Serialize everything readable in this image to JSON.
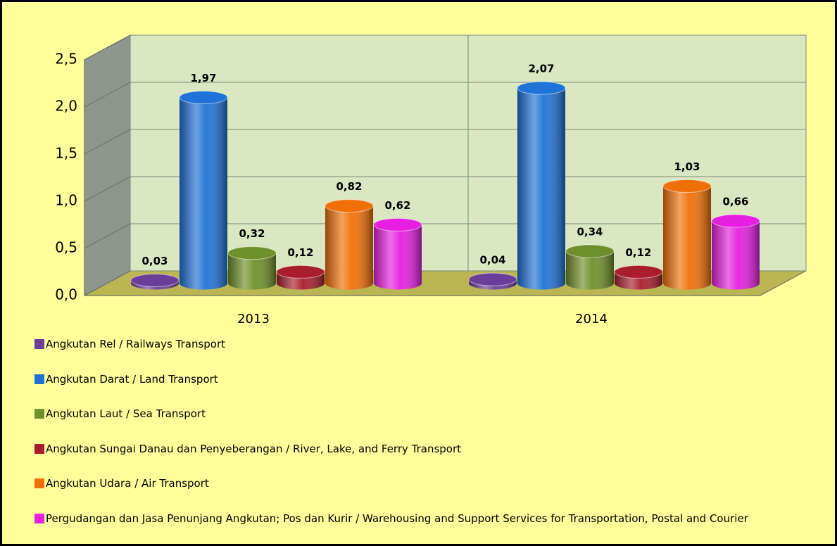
{
  "chart_data": {
    "type": "bar3d",
    "categories": [
      "2013",
      "2014"
    ],
    "series": [
      {
        "name": "Angkutan Rel / Railways Transport",
        "color": "#6a3f9a",
        "values": [
          0.03,
          0.04
        ],
        "value_labels": [
          "0,03",
          "0,04"
        ]
      },
      {
        "name": "Angkutan Darat / Land Transport",
        "color": "#1f72d6",
        "values": [
          1.97,
          2.07
        ],
        "value_labels": [
          "1,97",
          "2,07"
        ]
      },
      {
        "name": "Angkutan Laut / Sea Transport",
        "color": "#6e8f2a",
        "values": [
          0.32,
          0.34
        ],
        "value_labels": [
          "0,32",
          "0,34"
        ]
      },
      {
        "name": "Angkutan Sungai Danau dan Penyeberangan / River, Lake, and Ferry  Transport",
        "color": "#a81e2c",
        "values": [
          0.12,
          0.12
        ],
        "value_labels": [
          "0,12",
          "0,12"
        ]
      },
      {
        "name": "Angkutan Udara / Air Transport",
        "color": "#f07008",
        "values": [
          0.82,
          1.03
        ],
        "value_labels": [
          "0,82",
          "1,03"
        ]
      },
      {
        "name": "Pergudangan dan Jasa Penunjang Angkutan; Pos dan Kurir / Warehousing and Support Services for Transportation, Postal and Courier",
        "color": "#e520e0",
        "values": [
          0.62,
          0.66
        ],
        "value_labels": [
          "0,62",
          "0,66"
        ]
      }
    ],
    "ylim": [
      0,
      2.5
    ],
    "yticks": [
      {
        "value": 0,
        "label": "0,0"
      },
      {
        "value": 0.5,
        "label": "0,5"
      },
      {
        "value": 1,
        "label": "1,0"
      },
      {
        "value": 1.5,
        "label": "1,5"
      },
      {
        "value": 2,
        "label": "2,0"
      },
      {
        "value": 2.5,
        "label": "2,5"
      }
    ],
    "grid": true
  }
}
